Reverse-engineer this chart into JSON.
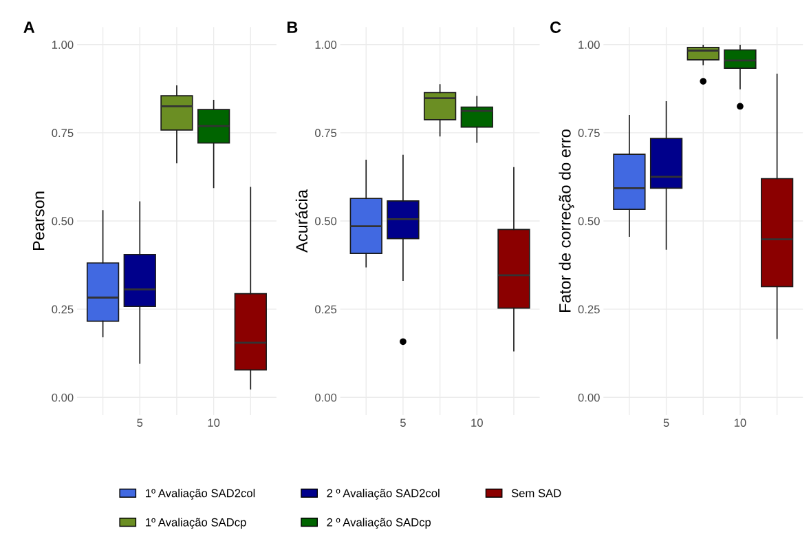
{
  "chart_data": [
    {
      "type": "box",
      "title": "A",
      "ylabel": "Pearson",
      "categories": [
        null,
        "5",
        null,
        "10",
        null
      ],
      "ylim": [
        -0.05,
        1.05
      ],
      "yticks": [
        {
          "value": 0,
          "label": "0.00"
        },
        {
          "value": 0.25,
          "label": "0.25"
        },
        {
          "value": 0.5,
          "label": "0.50"
        },
        {
          "value": 0.75,
          "label": "0.75"
        },
        {
          "value": 1,
          "label": "1.00"
        }
      ],
      "grid": true,
      "legend": "bottom",
      "series": [
        {
          "name": "1º Avaliação SAD2col",
          "color": "#4169e1",
          "boxes": [
            {
              "low": 0.172,
              "q1": 0.216,
              "median": 0.283,
              "q3": 0.381,
              "high": 0.529
            },
            null,
            null,
            null,
            null
          ]
        },
        {
          "name": "1º Avaliação SADcp",
          "color": "#6b8e23",
          "boxes": [
            null,
            null,
            {
              "low": 0.665,
              "q1": 0.758,
              "median": 0.825,
              "q3": 0.855,
              "high": 0.883
            },
            null,
            null
          ]
        },
        {
          "name": "2 º Avaliação SAD2col",
          "color": "#00008b",
          "boxes": [
            null,
            {
              "low": 0.097,
              "q1": 0.258,
              "median": 0.306,
              "q3": 0.405,
              "high": 0.554
            },
            null,
            null,
            null
          ]
        },
        {
          "name": "2 º Avaliação SADcp",
          "color": "#006400",
          "boxes": [
            null,
            null,
            null,
            {
              "low": 0.595,
              "q1": 0.721,
              "median": 0.769,
              "q3": 0.816,
              "high": 0.842
            },
            null
          ]
        },
        {
          "name": "Sem SAD",
          "color": "#8b0000",
          "boxes": [
            null,
            null,
            null,
            null,
            {
              "low": 0.024,
              "q1": 0.078,
              "median": 0.155,
              "q3": 0.294,
              "high": 0.595
            }
          ]
        }
      ]
    },
    {
      "type": "box",
      "title": "B",
      "ylabel": "Acurácia",
      "categories": [
        null,
        "5",
        null,
        "10",
        null
      ],
      "ylim": [
        -0.05,
        1.05
      ],
      "yticks": [
        {
          "value": 0,
          "label": "0.00"
        },
        {
          "value": 0.25,
          "label": "0.25"
        },
        {
          "value": 0.5,
          "label": "0.50"
        },
        {
          "value": 0.75,
          "label": "0.75"
        },
        {
          "value": 1,
          "label": "1.00"
        }
      ],
      "grid": true,
      "series": [
        {
          "color": "#4169e1",
          "boxes": [
            {
              "low": 0.37,
              "q1": 0.408,
              "median": 0.485,
              "q3": 0.564,
              "high": 0.672
            },
            null,
            null,
            null,
            null
          ]
        },
        {
          "color": "#6b8e23",
          "boxes": [
            null,
            null,
            {
              "low": 0.741,
              "q1": 0.787,
              "median": 0.848,
              "q3": 0.864,
              "high": 0.886
            },
            null,
            null
          ]
        },
        {
          "color": "#00008b",
          "boxes": [
            null,
            {
              "low": 0.332,
              "q1": 0.45,
              "median": 0.505,
              "q3": 0.557,
              "high": 0.686,
              "outliers": [
                0.158
              ]
            },
            null,
            null,
            null
          ]
        },
        {
          "color": "#006400",
          "boxes": [
            null,
            null,
            null,
            {
              "low": 0.723,
              "q1": 0.766,
              "median": 0.812,
              "q3": 0.823,
              "high": 0.853
            },
            null
          ]
        },
        {
          "color": "#8b0000",
          "boxes": [
            null,
            null,
            null,
            null,
            {
              "low": 0.132,
              "q1": 0.253,
              "median": 0.346,
              "q3": 0.476,
              "high": 0.651
            }
          ]
        }
      ]
    },
    {
      "type": "box",
      "title": "C",
      "ylabel": "Fator de correção do erro",
      "categories": [
        null,
        "5",
        null,
        "10",
        null
      ],
      "ylim": [
        -0.05,
        1.05
      ],
      "yticks": [
        {
          "value": 0,
          "label": "0.00"
        },
        {
          "value": 0.25,
          "label": "0.25"
        },
        {
          "value": 0.5,
          "label": "0.50"
        },
        {
          "value": 0.75,
          "label": "0.75"
        },
        {
          "value": 1,
          "label": "1.00"
        }
      ],
      "grid": true,
      "series": [
        {
          "color": "#4169e1",
          "boxes": [
            {
              "low": 0.457,
              "q1": 0.533,
              "median": 0.593,
              "q3": 0.689,
              "high": 0.799
            },
            null,
            null,
            null,
            null
          ]
        },
        {
          "color": "#6b8e23",
          "boxes": [
            null,
            null,
            {
              "low": 0.943,
              "q1": 0.957,
              "median": 0.983,
              "q3": 0.992,
              "high": 0.998,
              "outliers": [
                0.896
              ]
            },
            null,
            null
          ]
        },
        {
          "color": "#00008b",
          "boxes": [
            null,
            {
              "low": 0.42,
              "q1": 0.593,
              "median": 0.625,
              "q3": 0.734,
              "high": 0.838
            },
            null,
            null,
            null
          ]
        },
        {
          "color": "#006400",
          "boxes": [
            null,
            null,
            null,
            {
              "low": 0.875,
              "q1": 0.933,
              "median": 0.955,
              "q3": 0.985,
              "high": 0.998,
              "outliers": [
                0.825
              ]
            },
            null
          ]
        },
        {
          "color": "#8b0000",
          "boxes": [
            null,
            null,
            null,
            null,
            {
              "low": 0.167,
              "q1": 0.314,
              "median": 0.448,
              "q3": 0.62,
              "high": 0.916
            }
          ]
        }
      ]
    }
  ]
}
